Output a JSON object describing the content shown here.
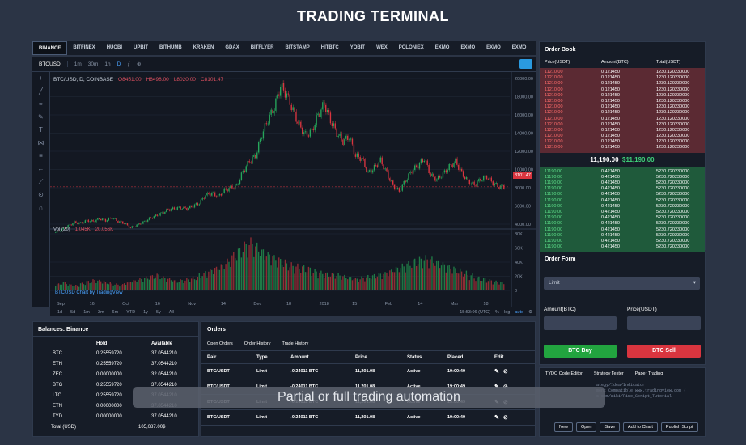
{
  "page_title": "TRADING TERMINAL",
  "exchanges": [
    "BINANCE",
    "BITFINEX",
    "HUOBI",
    "UPBIT",
    "BITHUMB",
    "KRAKEN",
    "GDAX",
    "BITFLYER",
    "BITSTAMP",
    "HITBTC",
    "YOBIT",
    "WEX",
    "POLONIEX",
    "EXMO",
    "EXMO",
    "EXMO",
    "EXMO"
  ],
  "toolbar": {
    "symbol": "BTCUSD",
    "timeframes": [
      "1m",
      "30m",
      "1h",
      "D"
    ],
    "selected_tf": "D"
  },
  "chart": {
    "legend": "BTC/USD, D, COINBASE",
    "ohlc": [
      "O8451.00",
      "H8498.00",
      "L8020.00",
      "C8101.47"
    ],
    "last_price": "8101.47",
    "y_ticks": [
      "20000.00",
      "18000.00",
      "16000.00",
      "14000.00",
      "12000.00",
      "10000.00",
      "8000.00",
      "6000.00",
      "4000.00"
    ],
    "vol_label": "Vol (20)",
    "vol_values": [
      "1.045K",
      "20.056K"
    ],
    "vol_ticks": [
      "80K",
      "60K",
      "40K",
      "20K",
      "0"
    ],
    "watermark": "BTCUSD Chart by TradingView",
    "x_ticks": [
      "Sep",
      "16",
      "Oct",
      "16",
      "Nov",
      "14",
      "Dec",
      "18",
      "2018",
      "15",
      "Feb",
      "14",
      "Mar",
      "18"
    ],
    "ranges": [
      "1d",
      "5d",
      "1m",
      "3m",
      "6m",
      "YTD",
      "1y",
      "5y",
      "All"
    ],
    "time": "15:53:06 (UTC)",
    "scale_opts": [
      "%",
      "log",
      "auto"
    ]
  },
  "order_book": {
    "title": "Order Book",
    "headers": [
      "Price(USDT)",
      "Amount(BTC)",
      "Total(USDT)"
    ],
    "ask_price": "11210.00",
    "ask_amount": "0.121450",
    "ask_total": "1230.120230000",
    "bid_price": "11190.00",
    "bid_amount": "0.421450",
    "bid_total": "5230.720230000",
    "spread_price": "11,190.00",
    "spread_usd": "$11,190.00"
  },
  "order_form": {
    "title": "Order Form",
    "type": "Limit",
    "amount_label": "Amount(BTC)",
    "price_label": "Price(USDT)",
    "buy_label": "BTC Buy",
    "sell_label": "BTC Sell"
  },
  "scripting": {
    "tabs": [
      "TYDO Code Editor",
      "Strategy Tester",
      "Paper Trading"
    ],
    "lines": [
      "ategy/Idea/Indicator",
      "ment Compatible www.tradingview.com (",
      "s.com/wiki/Pine_Script_Tutorial"
    ],
    "buttons": [
      "New",
      "Open",
      "Save",
      "Add to Chart",
      "Publish Script"
    ]
  },
  "balances": {
    "title": "Balances: Binance",
    "headers": [
      "Hold",
      "Available"
    ],
    "rows": [
      {
        "coin": "BTC",
        "hold": "0.25559720",
        "avail": "37.0544210"
      },
      {
        "coin": "ETH",
        "hold": "0.25559720",
        "avail": "37.0544210"
      },
      {
        "coin": "ZEC",
        "hold": "0.00000000",
        "avail": "32.0544210"
      },
      {
        "coin": "BTG",
        "hold": "0.25559720",
        "avail": "37.0544210"
      },
      {
        "coin": "LTC",
        "hold": "0.25559720",
        "avail": "37.0544210"
      },
      {
        "coin": "ETN",
        "hold": "0.00000000",
        "avail": "37.0544210"
      },
      {
        "coin": "TYD",
        "hold": "0.00000000",
        "avail": "37.0544210"
      }
    ],
    "total_label": "Total (USD)",
    "total_value": "105,087.00$"
  },
  "orders": {
    "title": "Orders",
    "tabs": [
      "Open Orders",
      "Order History",
      "Trade History"
    ],
    "headers": [
      "Pair",
      "Type",
      "Amount",
      "Price",
      "Status",
      "Placed",
      "Edit"
    ],
    "rows": [
      {
        "pair": "BTC/USDT",
        "type": "Limit",
        "amount": "-0.24011 BTC",
        "price": "11,201.08",
        "status": "Active",
        "placed": "19:00:49"
      },
      {
        "pair": "BTC/USDT",
        "type": "Limit",
        "amount": "-0.24011 BTC",
        "price": "11,201.08",
        "status": "Active",
        "placed": "19:00:49"
      },
      {
        "pair": "BTC/USDT",
        "type": "Limit",
        "amount": "-0.24011 BTC",
        "price": "11,201.08",
        "status": "Active",
        "placed": "19:00:49"
      },
      {
        "pair": "BTC/USDT",
        "type": "Limit",
        "amount": "-0.24011 BTC",
        "price": "11,201.08",
        "status": "Active",
        "placed": "19:00:49"
      }
    ]
  },
  "overlay_caption": "Partial or full trading automation",
  "colors": {
    "bg": "#2b3445",
    "panel": "#161c27",
    "green": "#26a65b",
    "red": "#d9353f",
    "accent": "#2a9ae0"
  },
  "chart_data": {
    "type": "candlestick",
    "price_series": [
      3100,
      3400,
      3800,
      4200,
      4100,
      4400,
      4300,
      4600,
      4400,
      4700,
      4300,
      4100,
      3600,
      3900,
      4200,
      4600,
      4900,
      5200,
      5600,
      5700,
      5800,
      5700,
      6000,
      6300,
      7200,
      7400,
      7000,
      7700,
      8000,
      8200,
      9800,
      10900,
      11500,
      13800,
      15500,
      16800,
      19200,
      18200,
      16500,
      14800,
      13800,
      14200,
      16000,
      17200,
      15400,
      14000,
      13100,
      13600,
      11500,
      11200,
      9600,
      10200,
      11000,
      9600,
      8200,
      7600,
      8800,
      9900,
      10400,
      11200,
      9400,
      8900,
      9500,
      10300,
      10900,
      9600,
      8700,
      8300,
      8900,
      9200,
      8500,
      8100
    ],
    "volume_series": [
      10,
      12,
      9,
      8,
      11,
      14,
      16,
      15,
      12,
      10,
      9,
      12,
      15,
      18,
      20,
      22,
      24,
      20,
      18,
      15,
      16,
      18,
      20,
      25,
      30,
      34,
      38,
      45,
      55,
      62,
      70,
      75,
      68,
      60,
      55,
      50,
      45,
      40,
      38,
      36,
      34,
      30,
      28,
      26,
      25,
      24,
      22,
      20,
      18,
      20,
      22,
      24,
      26,
      30,
      34,
      38,
      42,
      46,
      48,
      50,
      48,
      44,
      40,
      36,
      32,
      28,
      24,
      20,
      18,
      16,
      14,
      12
    ],
    "ylim": [
      4000,
      20000
    ]
  }
}
